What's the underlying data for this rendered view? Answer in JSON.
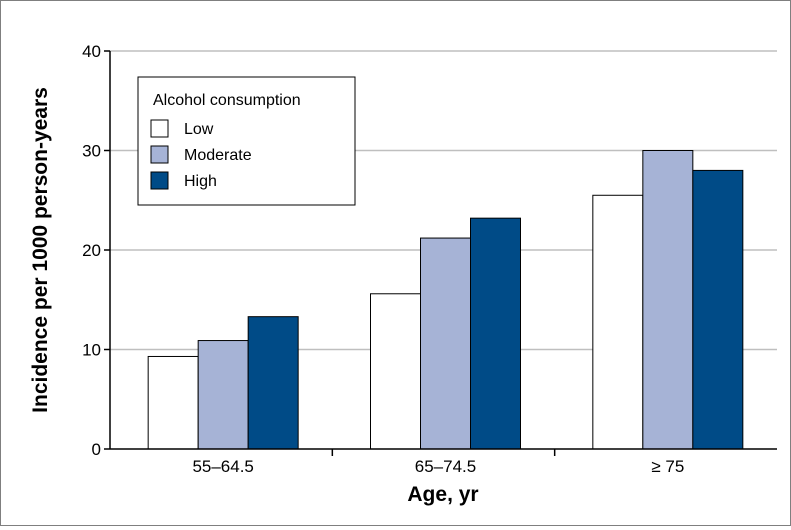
{
  "chart_data": {
    "type": "bar",
    "title": "",
    "xlabel": "Age, yr",
    "ylabel": "Incidence per 1000 person-years",
    "ylim": [
      0,
      40
    ],
    "yticks": [
      0,
      10,
      20,
      30,
      40
    ],
    "categories": [
      "55–64.5",
      "65–74.5",
      "≥ 75"
    ],
    "series": [
      {
        "name": "Low",
        "values": [
          9.3,
          15.6,
          25.5
        ],
        "color": "#ffffff"
      },
      {
        "name": "Moderate",
        "values": [
          10.9,
          21.2,
          30.0
        ],
        "color": "#a6b3d6"
      },
      {
        "name": "High",
        "values": [
          13.3,
          23.2,
          28.0
        ],
        "color": "#004b87"
      }
    ],
    "grid": true,
    "legend": {
      "title": "Alcohol consumption",
      "position": "top-left"
    },
    "colors": {
      "gridline": "#bfbfbf",
      "bar_outline": "#000000"
    }
  }
}
